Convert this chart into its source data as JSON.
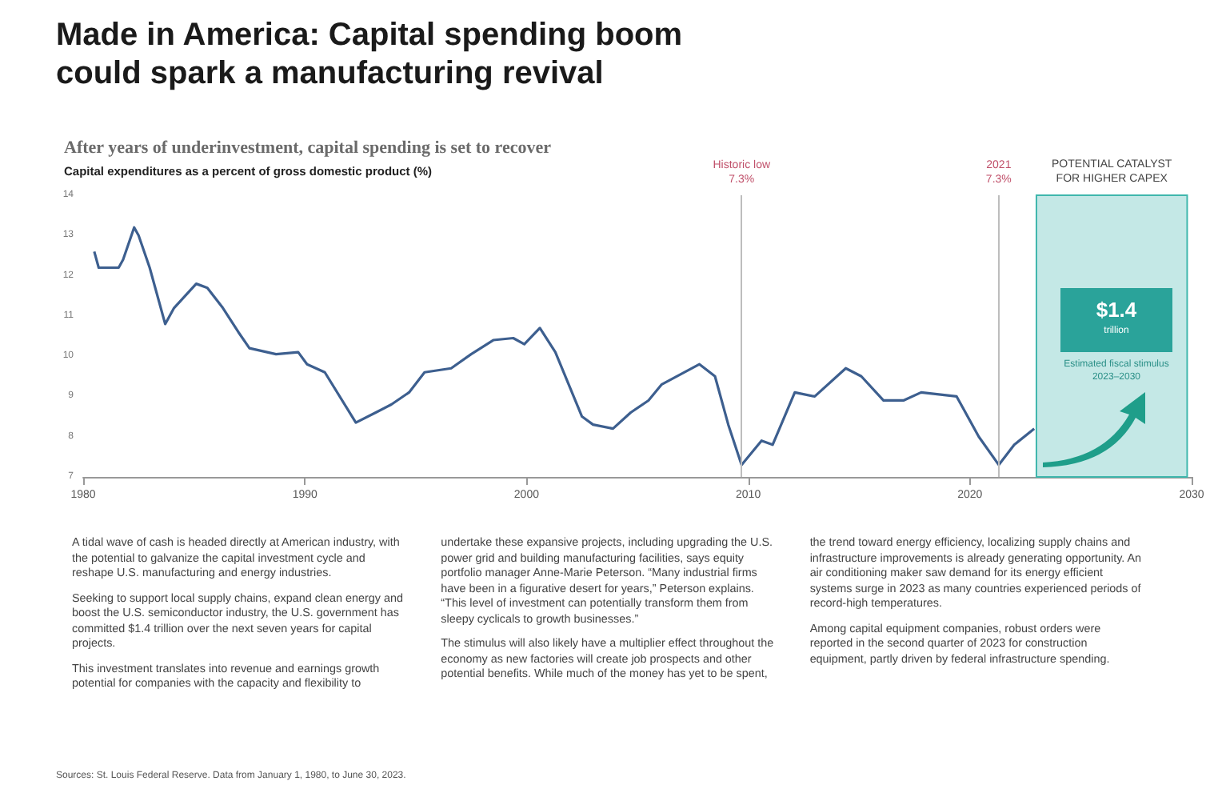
{
  "chart_data": {
    "type": "line",
    "title": "Made in America: Capital spending boom could spark a manufacturing revival",
    "subtitle": "After years of underinvestment, capital spending is set to recover",
    "ylabel": "Capital expenditures as a percent of gross domestic product (%)",
    "x": [
      1980.5,
      1980.7,
      1981.6,
      1981.8,
      1982.3,
      1982.5,
      1983,
      1983.7,
      1984.1,
      1985.1,
      1985.6,
      1986.3,
      1987,
      1987.5,
      1988.7,
      1989.7,
      1990.1,
      1990.9,
      1992.3,
      1993.2,
      1993.9,
      1994.7,
      1995.4,
      1996.6,
      1997.5,
      1998.5,
      1999.4,
      1999.9,
      2000.6,
      2001.3,
      2002.5,
      2003,
      2003.9,
      2004.7,
      2005.5,
      2006.1,
      2007.8,
      2008.5,
      2009.1,
      2009.7,
      2010.6,
      2011.1,
      2012.1,
      2013,
      2014.4,
      2015.1,
      2016.1,
      2017,
      2017.8,
      2019.4,
      2020.4,
      2021.3,
      2022,
      2022.9
    ],
    "series": [
      {
        "color": "#3d5f8f",
        "values": [
          12.6,
          12.2,
          12.2,
          12.4,
          13.2,
          13.0,
          12.2,
          10.8,
          11.2,
          11.8,
          11.7,
          11.2,
          10.6,
          10.2,
          10.05,
          10.1,
          9.8,
          9.6,
          8.35,
          8.6,
          8.8,
          9.1,
          9.6,
          9.7,
          10.05,
          10.4,
          10.45,
          10.3,
          10.7,
          10.1,
          8.5,
          8.3,
          8.2,
          8.6,
          8.9,
          9.3,
          9.8,
          9.5,
          8.3,
          7.3,
          7.9,
          7.8,
          9.1,
          9.0,
          9.7,
          9.5,
          8.9,
          8.9,
          9.1,
          9.0,
          8.0,
          7.3,
          7.8,
          8.2
        ]
      }
    ],
    "xlim": [
      1980,
      2030
    ],
    "xticks": [
      1980,
      1990,
      2000,
      2010,
      2020,
      2030
    ],
    "ylim": [
      7,
      14
    ],
    "yticks": [
      7,
      8,
      9,
      10,
      11,
      12,
      13,
      14
    ],
    "grid": false,
    "marker": "none",
    "line_style": "solid",
    "ref_lines": [
      {
        "axis": "x",
        "value": 2009.7,
        "label": "Historic low\n7.3%",
        "color": "#bdbdbd"
      },
      {
        "axis": "x",
        "value": 2021.3,
        "label": "2021\n7.3%",
        "color": "#bdbdbd"
      }
    ],
    "bands": [
      {
        "axis": "x",
        "from": 2023,
        "to": 2029.8,
        "label": "POTENTIAL CATALYST\nFOR HIGHER CAPEX",
        "color": "#c4e8e6"
      }
    ],
    "annotations": [
      "$1.4",
      "trillion",
      "Estimated fiscal stimulus 2023–2030",
      "A tidal wave of cash is headed directly at American industry, with the potential to galvanize the capital investment cycle and reshape U.S. manufacturing and energy industries.",
      "Seeking to support local supply chains, expand clean energy and boost the U.S. semiconductor industry, the U.S. government has committed $1.4 trillion over the next seven years for capital projects.",
      "This investment translates into revenue and earnings growth potential for companies with the capacity and flexibility to undertake these expansive projects, including upgrading the U.S. power grid and building manufacturing facilities, says equity portfolio manager Anne-Marie Peterson. “Many industrial firms have been in a figurative desert for years,” Peterson explains. “This level of investment can potentially transform them from sleepy cyclicals to growth businesses.”",
      "The stimulus will also likely have a multiplier effect throughout the economy as new factories will create job prospects and other potential benefits. While much of the money has yet to be spent, the trend toward energy efficiency, localizing supply chains and infrastructure improvements is already generating opportunity. An air conditioning maker saw demand for its energy efficient systems surge in 2023 as many countries experienced periods of record-high temperatures.",
      "Among capital equipment companies, robust orders were reported in the second quarter of 2023 for construction equipment, partly driven by federal infrastructure spending.",
      "Sources: St. Louis Federal Reserve. Data from January 1, 1980, to June 30, 2023."
    ]
  }
}
